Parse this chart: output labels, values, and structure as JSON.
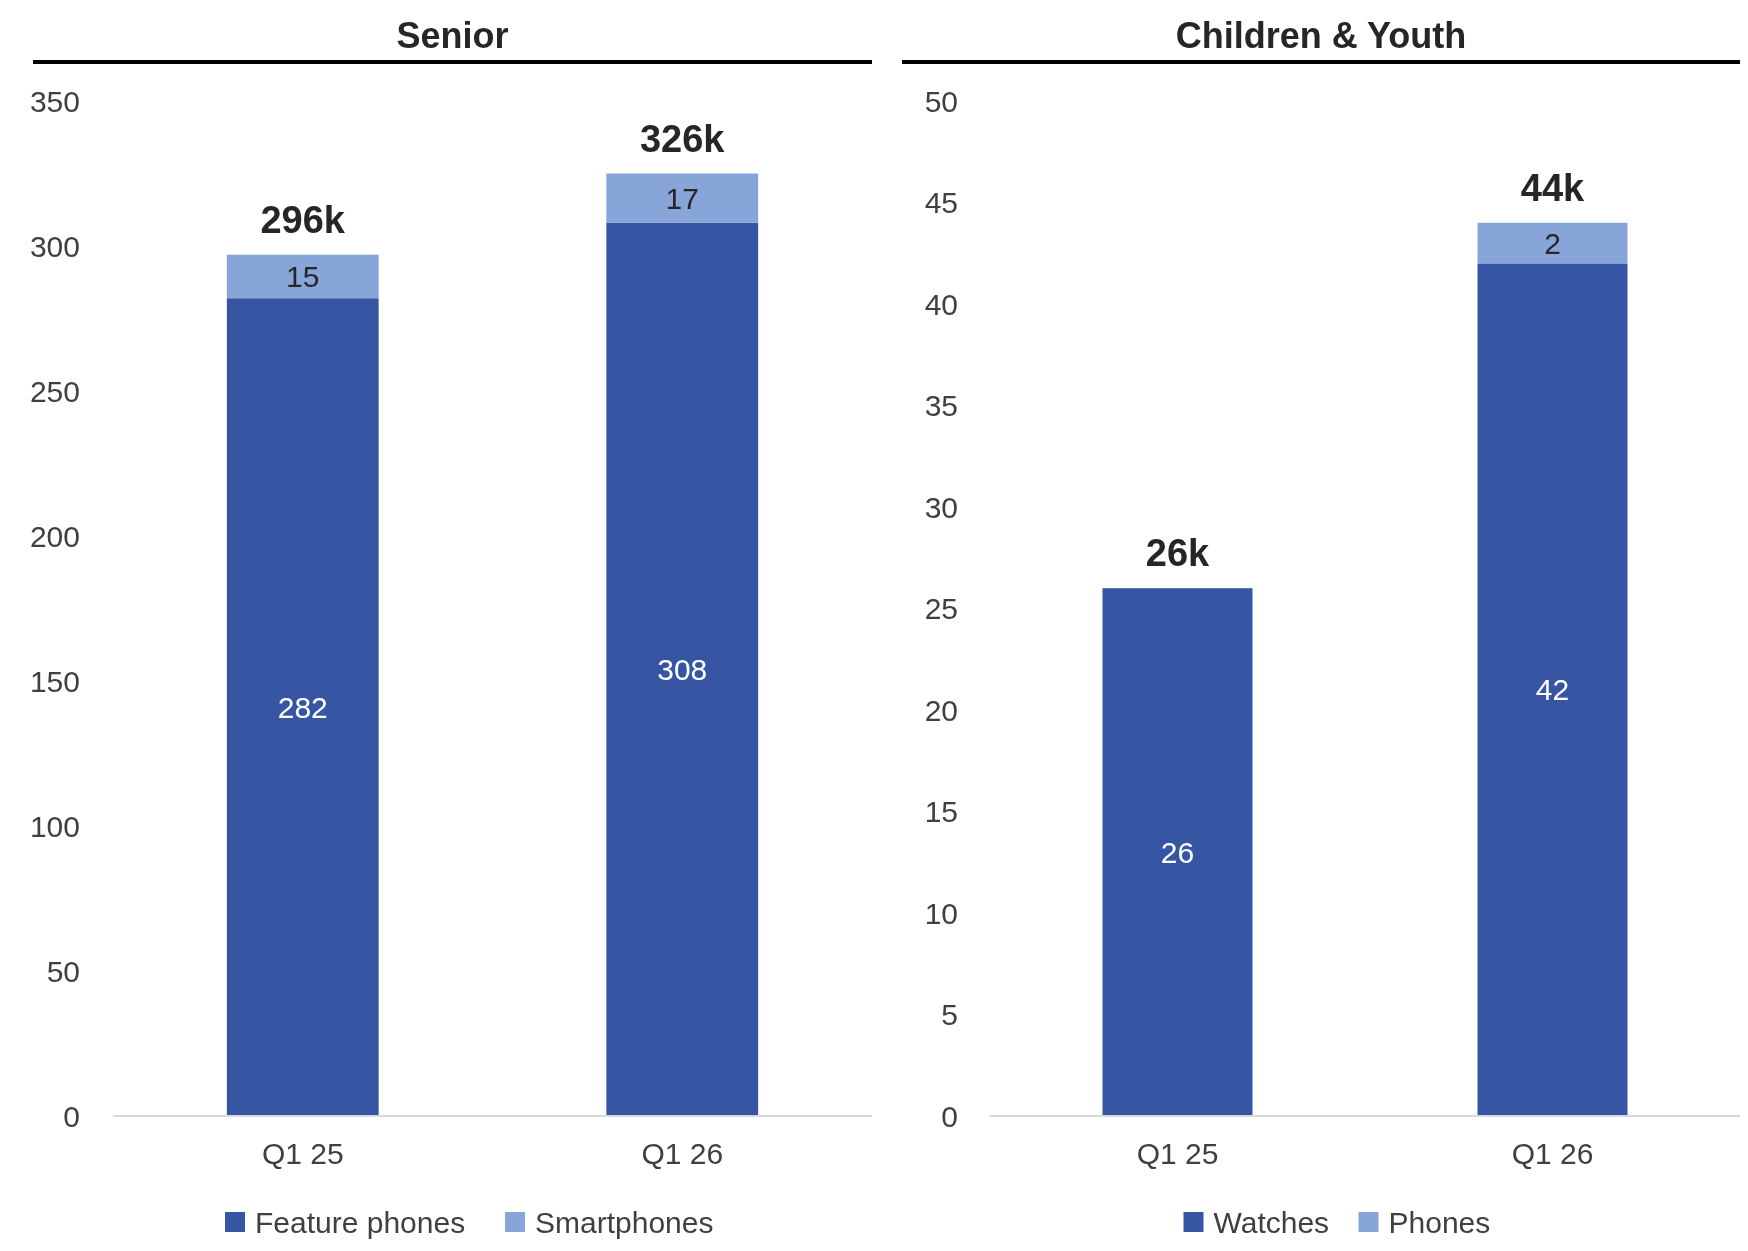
{
  "chart_data": [
    {
      "type": "bar",
      "title": "Senior",
      "categories": [
        "Q1 25",
        "Q1 26"
      ],
      "stacked": true,
      "data_labels": true,
      "legend": "bottom",
      "grid": false,
      "ylim": [
        0,
        350
      ],
      "yticks": [
        0,
        50,
        100,
        150,
        200,
        250,
        300,
        350
      ],
      "totals": [
        "296k",
        "326k"
      ],
      "series": [
        {
          "name": "Feature phones",
          "color": "#3656a4",
          "values": [
            282,
            308
          ]
        },
        {
          "name": "Smartphones",
          "color": "#87a5d9",
          "values": [
            15,
            17
          ]
        }
      ]
    },
    {
      "type": "bar",
      "title": "Children & Youth",
      "categories": [
        "Q1 25",
        "Q1 26"
      ],
      "stacked": true,
      "data_labels": true,
      "legend": "bottom",
      "grid": false,
      "ylim": [
        0,
        50
      ],
      "yticks": [
        0,
        5,
        10,
        15,
        20,
        25,
        30,
        35,
        40,
        45,
        50
      ],
      "totals": [
        "26k",
        "44k"
      ],
      "series": [
        {
          "name": "Watches",
          "color": "#3656a4",
          "values": [
            26,
            42
          ]
        },
        {
          "name": "Phones",
          "color": "#87a5d9",
          "values": [
            null,
            2
          ]
        }
      ]
    }
  ]
}
